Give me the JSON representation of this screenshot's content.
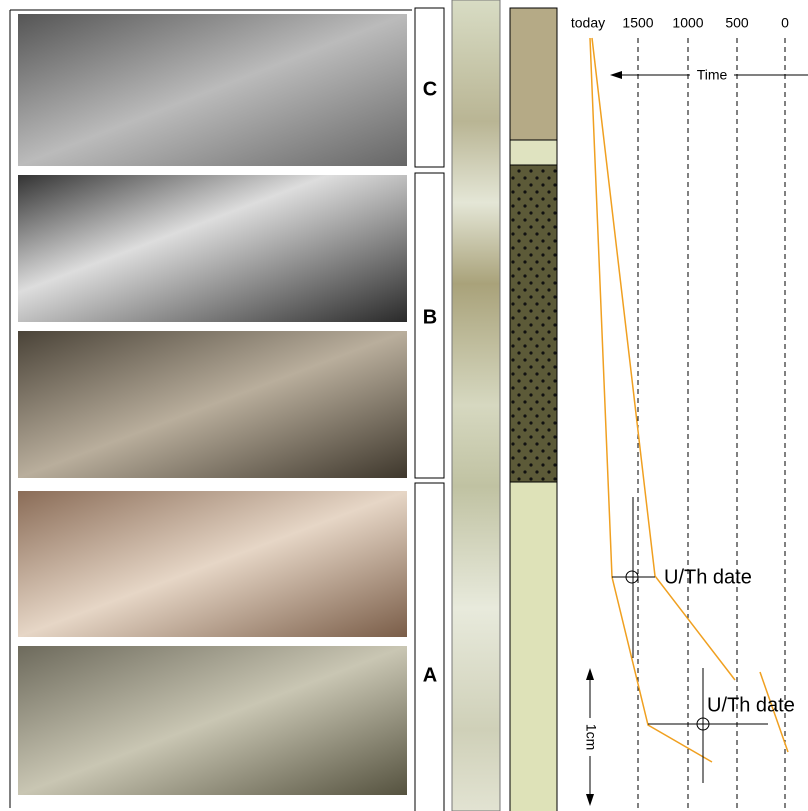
{
  "panels": [
    "C",
    "B",
    "A"
  ],
  "time_axis": {
    "label": "Time",
    "ticks": [
      "today",
      "1500",
      "1000",
      "500",
      "0"
    ]
  },
  "annotations": [
    "U/Th date",
    "U/Th date"
  ],
  "scale_bar": "1cm"
}
